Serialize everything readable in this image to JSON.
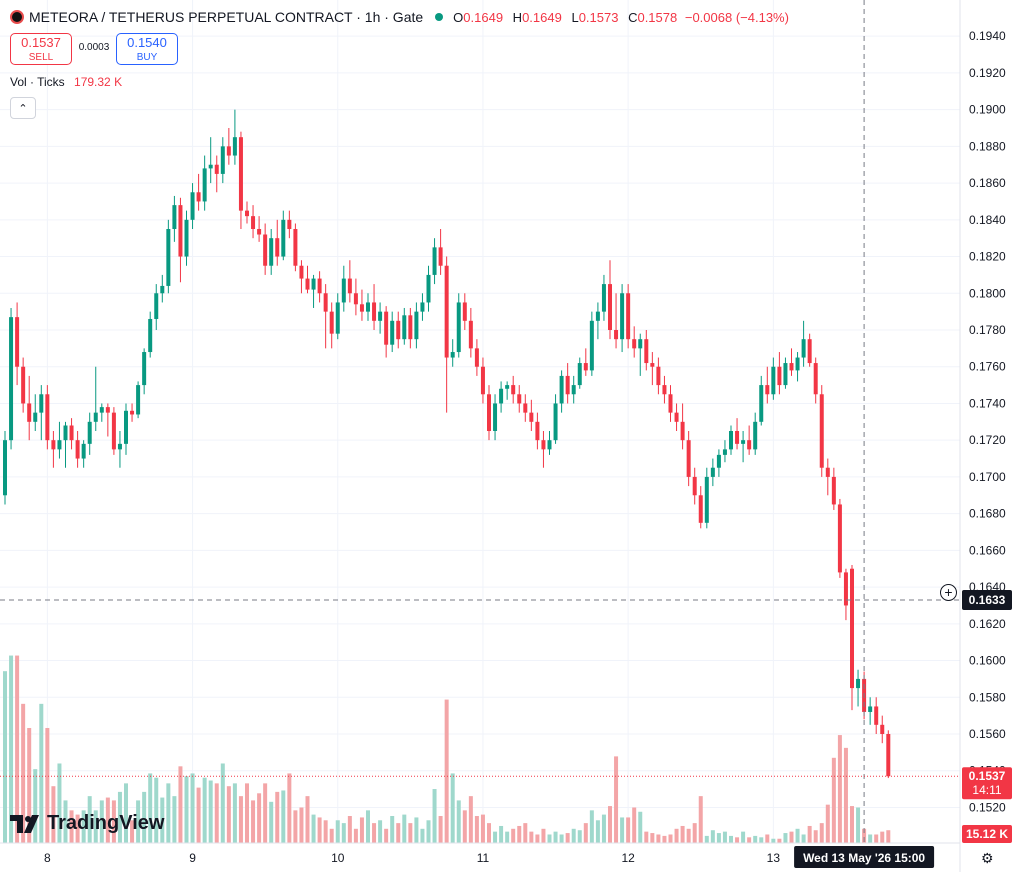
{
  "header": {
    "title": "METEORA / TETHERUS PERPETUAL CONTRACT · 1h · Gate",
    "ohlc": {
      "o_label": "O",
      "o": "0.1649",
      "h_label": "H",
      "h": "0.1649",
      "l_label": "L",
      "l": "0.1573",
      "c_label": "C",
      "c": "0.1578",
      "change": "−0.0068 (−4.13%)"
    }
  },
  "trade": {
    "sell_price": "0.1537",
    "sell_label": "SELL",
    "spread": "0.0003",
    "buy_price": "0.1540",
    "buy_label": "BUY"
  },
  "volume_legend": {
    "label": "Vol · Ticks",
    "value": "179.32 K"
  },
  "watermark": "TradingView",
  "colors": {
    "up": "#089981",
    "down": "#f23645",
    "vol_up": "#9fd8cc",
    "vol_down": "#f3a5a7",
    "grid": "#f0f3fa"
  },
  "chart_data": {
    "type": "candlestick",
    "ylim": [
      0.1505,
      0.1945
    ],
    "y_ticks": [
      "0.1520",
      "0.1540",
      "0.1560",
      "0.1580",
      "0.1600",
      "0.1620",
      "0.1640",
      "0.1660",
      "0.1680",
      "0.1700",
      "0.1720",
      "0.1740",
      "0.1760",
      "0.1780",
      "0.1800",
      "0.1820",
      "0.1840",
      "0.1860",
      "0.1880",
      "0.1900",
      "0.1920",
      "0.1940"
    ],
    "x_ticks": [
      {
        "label": "8",
        "index": 7
      },
      {
        "label": "9",
        "index": 31
      },
      {
        "label": "10",
        "index": 55
      },
      {
        "label": "11",
        "index": 79
      },
      {
        "label": "12",
        "index": 103
      },
      {
        "label": "13",
        "index": 127
      }
    ],
    "crosshair": {
      "index": 142,
      "price": 0.1633,
      "price_label": "0.1633",
      "time_label": "Wed 13 May '26   15:00"
    },
    "last_price": {
      "value": 0.1537,
      "label": "0.1537",
      "countdown": "14:11"
    },
    "last_volume_label": "15.12 K",
    "candles": [
      [
        0.169,
        0.1725,
        0.1685,
        0.172
      ],
      [
        0.172,
        0.1792,
        0.1715,
        0.1787
      ],
      [
        0.1787,
        0.1795,
        0.175,
        0.176
      ],
      [
        0.176,
        0.1765,
        0.1735,
        0.174
      ],
      [
        0.174,
        0.1755,
        0.172,
        0.173
      ],
      [
        0.173,
        0.1745,
        0.1725,
        0.1735
      ],
      [
        0.1735,
        0.175,
        0.172,
        0.1745
      ],
      [
        0.1745,
        0.175,
        0.1715,
        0.172
      ],
      [
        0.172,
        0.1725,
        0.1705,
        0.1715
      ],
      [
        0.1715,
        0.173,
        0.171,
        0.172
      ],
      [
        0.172,
        0.173,
        0.1705,
        0.1728
      ],
      [
        0.1728,
        0.1732,
        0.1715,
        0.172
      ],
      [
        0.172,
        0.1725,
        0.1705,
        0.171
      ],
      [
        0.171,
        0.172,
        0.1705,
        0.1718
      ],
      [
        0.1718,
        0.1735,
        0.1712,
        0.173
      ],
      [
        0.173,
        0.176,
        0.1725,
        0.1735
      ],
      [
        0.1735,
        0.174,
        0.173,
        0.1738
      ],
      [
        0.1738,
        0.174,
        0.1722,
        0.1735
      ],
      [
        0.1735,
        0.1738,
        0.1712,
        0.1715
      ],
      [
        0.1715,
        0.1725,
        0.1705,
        0.1718
      ],
      [
        0.1718,
        0.174,
        0.1712,
        0.1736
      ],
      [
        0.1736,
        0.174,
        0.173,
        0.1734
      ],
      [
        0.1734,
        0.1752,
        0.1732,
        0.175
      ],
      [
        0.175,
        0.177,
        0.1745,
        0.1768
      ],
      [
        0.1768,
        0.179,
        0.1765,
        0.1786
      ],
      [
        0.1786,
        0.1805,
        0.178,
        0.18
      ],
      [
        0.18,
        0.181,
        0.1795,
        0.1804
      ],
      [
        0.1804,
        0.184,
        0.18,
        0.1835
      ],
      [
        0.1835,
        0.1853,
        0.1828,
        0.1848
      ],
      [
        0.1848,
        0.1852,
        0.1806,
        0.182
      ],
      [
        0.182,
        0.1845,
        0.1815,
        0.184
      ],
      [
        0.184,
        0.186,
        0.1835,
        0.1855
      ],
      [
        0.1855,
        0.1865,
        0.1845,
        0.185
      ],
      [
        0.185,
        0.1875,
        0.1845,
        0.1868
      ],
      [
        0.1868,
        0.1885,
        0.186,
        0.187
      ],
      [
        0.187,
        0.1875,
        0.1855,
        0.1865
      ],
      [
        0.1865,
        0.1885,
        0.186,
        0.188
      ],
      [
        0.188,
        0.189,
        0.187,
        0.1875
      ],
      [
        0.1875,
        0.19,
        0.187,
        0.1885
      ],
      [
        0.1885,
        0.1888,
        0.1835,
        0.1845
      ],
      [
        0.1845,
        0.185,
        0.1838,
        0.1842
      ],
      [
        0.1842,
        0.1848,
        0.183,
        0.1835
      ],
      [
        0.1835,
        0.1842,
        0.1828,
        0.1832
      ],
      [
        0.1832,
        0.1838,
        0.181,
        0.1815
      ],
      [
        0.1815,
        0.1835,
        0.181,
        0.183
      ],
      [
        0.183,
        0.184,
        0.1815,
        0.182
      ],
      [
        0.182,
        0.1845,
        0.1818,
        0.184
      ],
      [
        0.184,
        0.1845,
        0.183,
        0.1835
      ],
      [
        0.1835,
        0.1838,
        0.1812,
        0.1815
      ],
      [
        0.1815,
        0.1818,
        0.18,
        0.1808
      ],
      [
        0.1808,
        0.1815,
        0.18,
        0.1802
      ],
      [
        0.1802,
        0.181,
        0.1792,
        0.1808
      ],
      [
        0.1808,
        0.1812,
        0.1795,
        0.18
      ],
      [
        0.18,
        0.1805,
        0.177,
        0.179
      ],
      [
        0.179,
        0.1795,
        0.177,
        0.1778
      ],
      [
        0.1778,
        0.18,
        0.1775,
        0.1795
      ],
      [
        0.1795,
        0.1815,
        0.179,
        0.1808
      ],
      [
        0.1808,
        0.1818,
        0.1795,
        0.18
      ],
      [
        0.18,
        0.1808,
        0.1788,
        0.1794
      ],
      [
        0.1794,
        0.1802,
        0.1785,
        0.179
      ],
      [
        0.179,
        0.18,
        0.1785,
        0.1795
      ],
      [
        0.1795,
        0.1805,
        0.178,
        0.1785
      ],
      [
        0.1785,
        0.1795,
        0.1778,
        0.179
      ],
      [
        0.179,
        0.1793,
        0.1765,
        0.1772
      ],
      [
        0.1772,
        0.179,
        0.1768,
        0.1785
      ],
      [
        0.1785,
        0.179,
        0.177,
        0.1775
      ],
      [
        0.1775,
        0.1792,
        0.1772,
        0.1788
      ],
      [
        0.1788,
        0.1792,
        0.177,
        0.1775
      ],
      [
        0.1775,
        0.1795,
        0.177,
        0.179
      ],
      [
        0.179,
        0.18,
        0.1785,
        0.1795
      ],
      [
        0.1795,
        0.1815,
        0.179,
        0.181
      ],
      [
        0.181,
        0.183,
        0.1805,
        0.1825
      ],
      [
        0.1825,
        0.1835,
        0.181,
        0.1815
      ],
      [
        0.1815,
        0.182,
        0.1735,
        0.1765
      ],
      [
        0.1765,
        0.1775,
        0.176,
        0.1768
      ],
      [
        0.1768,
        0.18,
        0.1765,
        0.1795
      ],
      [
        0.1795,
        0.18,
        0.178,
        0.1785
      ],
      [
        0.1785,
        0.1792,
        0.1765,
        0.177
      ],
      [
        0.177,
        0.1775,
        0.1755,
        0.176
      ],
      [
        0.176,
        0.1765,
        0.174,
        0.1745
      ],
      [
        0.1745,
        0.175,
        0.172,
        0.1725
      ],
      [
        0.1725,
        0.1745,
        0.172,
        0.174
      ],
      [
        0.174,
        0.1752,
        0.1735,
        0.1748
      ],
      [
        0.1748,
        0.1752,
        0.1742,
        0.175
      ],
      [
        0.175,
        0.1755,
        0.174,
        0.1745
      ],
      [
        0.1745,
        0.175,
        0.1735,
        0.174
      ],
      [
        0.174,
        0.1745,
        0.173,
        0.1735
      ],
      [
        0.1735,
        0.1742,
        0.1725,
        0.173
      ],
      [
        0.173,
        0.1735,
        0.1715,
        0.172
      ],
      [
        0.172,
        0.1725,
        0.1705,
        0.1715
      ],
      [
        0.1715,
        0.1725,
        0.1712,
        0.172
      ],
      [
        0.172,
        0.1745,
        0.1718,
        0.174
      ],
      [
        0.174,
        0.1758,
        0.1735,
        0.1755
      ],
      [
        0.1755,
        0.1762,
        0.174,
        0.1745
      ],
      [
        0.1745,
        0.1755,
        0.174,
        0.175
      ],
      [
        0.175,
        0.1765,
        0.1748,
        0.1762
      ],
      [
        0.1762,
        0.177,
        0.1755,
        0.1758
      ],
      [
        0.1758,
        0.179,
        0.1755,
        0.1785
      ],
      [
        0.1785,
        0.1795,
        0.1775,
        0.179
      ],
      [
        0.179,
        0.181,
        0.1785,
        0.1805
      ],
      [
        0.1805,
        0.1818,
        0.1775,
        0.178
      ],
      [
        0.178,
        0.18,
        0.177,
        0.1775
      ],
      [
        0.1775,
        0.1805,
        0.1768,
        0.18
      ],
      [
        0.18,
        0.1805,
        0.177,
        0.1775
      ],
      [
        0.1775,
        0.1782,
        0.1765,
        0.177
      ],
      [
        0.177,
        0.1778,
        0.1755,
        0.1775
      ],
      [
        0.1775,
        0.178,
        0.1758,
        0.1762
      ],
      [
        0.1762,
        0.1768,
        0.175,
        0.176
      ],
      [
        0.176,
        0.1765,
        0.1745,
        0.175
      ],
      [
        0.175,
        0.1755,
        0.174,
        0.1745
      ],
      [
        0.1745,
        0.175,
        0.173,
        0.1735
      ],
      [
        0.1735,
        0.174,
        0.1725,
        0.173
      ],
      [
        0.173,
        0.174,
        0.1715,
        0.172
      ],
      [
        0.172,
        0.1725,
        0.1695,
        0.17
      ],
      [
        0.17,
        0.1705,
        0.1685,
        0.169
      ],
      [
        0.169,
        0.1695,
        0.1672,
        0.1675
      ],
      [
        0.1675,
        0.1705,
        0.1672,
        0.17
      ],
      [
        0.17,
        0.171,
        0.1695,
        0.1705
      ],
      [
        0.1705,
        0.1715,
        0.17,
        0.1712
      ],
      [
        0.1712,
        0.172,
        0.1708,
        0.1715
      ],
      [
        0.1715,
        0.1728,
        0.1712,
        0.1725
      ],
      [
        0.1725,
        0.1732,
        0.1715,
        0.1718
      ],
      [
        0.1718,
        0.1725,
        0.1708,
        0.172
      ],
      [
        0.172,
        0.1728,
        0.1712,
        0.1715
      ],
      [
        0.1715,
        0.1735,
        0.1712,
        0.173
      ],
      [
        0.173,
        0.1755,
        0.1728,
        0.175
      ],
      [
        0.175,
        0.176,
        0.174,
        0.1745
      ],
      [
        0.1745,
        0.1765,
        0.1742,
        0.176
      ],
      [
        0.176,
        0.1768,
        0.1745,
        0.175
      ],
      [
        0.175,
        0.1765,
        0.1748,
        0.1762
      ],
      [
        0.1762,
        0.177,
        0.1755,
        0.1758
      ],
      [
        0.1758,
        0.1768,
        0.1752,
        0.1765
      ],
      [
        0.1765,
        0.1785,
        0.176,
        0.1775
      ],
      [
        0.1775,
        0.1778,
        0.176,
        0.1762
      ],
      [
        0.1762,
        0.1765,
        0.174,
        0.1745
      ],
      [
        0.1745,
        0.175,
        0.17,
        0.1705
      ],
      [
        0.1705,
        0.171,
        0.169,
        0.17
      ],
      [
        0.17,
        0.1705,
        0.1682,
        0.1685
      ],
      [
        0.1685,
        0.1688,
        0.1645,
        0.1648
      ],
      [
        0.1648,
        0.165,
        0.1622,
        0.163
      ],
      [
        0.165,
        0.1652,
        0.1573,
        0.1585
      ],
      [
        0.1585,
        0.1595,
        0.1575,
        0.159
      ],
      [
        0.159,
        0.1594,
        0.1568,
        0.1572
      ],
      [
        0.1572,
        0.158,
        0.1565,
        0.1575
      ],
      [
        0.1575,
        0.158,
        0.156,
        0.1565
      ],
      [
        0.1565,
        0.157,
        0.1555,
        0.156
      ],
      [
        0.156,
        0.1562,
        0.1536,
        0.1537
      ]
    ],
    "volumes": [
      12.1,
      13.2,
      13.2,
      9.8,
      8.1,
      5.2,
      9.8,
      8.1,
      4.0,
      5.6,
      3.0,
      2.3,
      2.0,
      2.3,
      3.3,
      2.3,
      3.0,
      3.2,
      3.0,
      3.6,
      4.2,
      1.6,
      3.0,
      3.6,
      4.9,
      4.6,
      3.2,
      4.2,
      3.3,
      5.4,
      4.7,
      4.9,
      3.9,
      4.6,
      4.4,
      4.2,
      5.6,
      4.0,
      4.2,
      3.3,
      4.2,
      3.0,
      3.5,
      4.2,
      2.9,
      3.6,
      3.7,
      4.9,
      2.3,
      2.5,
      3.3,
      2.0,
      1.8,
      1.6,
      1.0,
      1.6,
      1.4,
      1.9,
      1.0,
      1.8,
      2.3,
      1.4,
      1.6,
      1.0,
      1.9,
      1.4,
      2.0,
      1.4,
      1.8,
      1.0,
      1.6,
      3.8,
      1.9,
      10.1,
      4.9,
      3.0,
      2.3,
      3.3,
      1.9,
      2.0,
      1.4,
      0.8,
      1.2,
      0.8,
      1.0,
      1.2,
      1.4,
      0.8,
      0.6,
      1.0,
      0.6,
      0.8,
      0.6,
      0.7,
      1.0,
      0.9,
      1.4,
      2.3,
      1.6,
      2.0,
      2.6,
      6.1,
      1.8,
      1.8,
      2.5,
      2.2,
      0.8,
      0.7,
      0.6,
      0.5,
      0.6,
      1.0,
      1.2,
      1.0,
      1.4,
      3.3,
      0.5,
      0.9,
      0.7,
      0.8,
      0.5,
      0.4,
      0.8,
      0.4,
      0.5,
      0.4,
      0.6,
      0.3,
      0.3,
      0.7,
      0.8,
      1.0,
      0.6,
      1.2,
      0.9,
      1.4,
      2.7,
      6.0,
      7.6,
      6.7,
      2.6,
      2.5,
      1.0,
      0.6,
      0.6,
      0.8,
      0.9
    ]
  }
}
